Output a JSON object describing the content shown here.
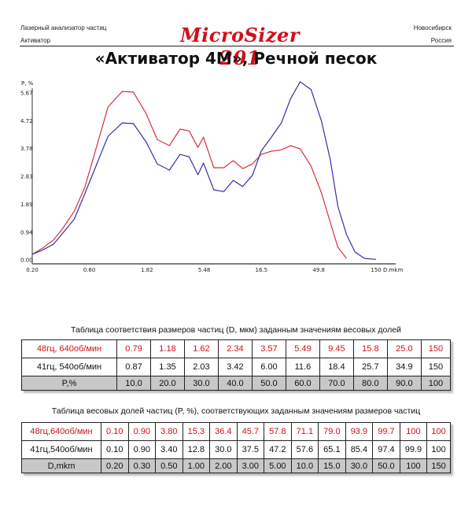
{
  "header": {
    "left_line1": "Лазерный анализатор частиц",
    "left_line2": "Активатор",
    "logo": "MicroSizer 201",
    "right_line1": "Новосибирск",
    "right_line2": "Россия"
  },
  "title": "«Активатор 4M», Речной песок",
  "colors": {
    "series_red": "#d83040",
    "series_blue": "#3030b0",
    "logo": "#d0101a",
    "table_footer_bg": "#c8c8c8"
  },
  "chart_data": {
    "type": "line",
    "title": "",
    "xlabel": "D.mkm",
    "ylabel": "P, %",
    "x_scale": "log",
    "x_ticks": [
      "0.20",
      "0.60",
      "1.82",
      "5.48",
      "16.5",
      "49.8",
      "150"
    ],
    "y_ticks": [
      "0.00",
      "0.94",
      "1.89",
      "2.83",
      "3.78",
      "4.72",
      "5.67"
    ],
    "ylim": [
      0,
      5.67
    ],
    "xlim": [
      0.2,
      150
    ],
    "grid": false,
    "series": [
      {
        "name": "48гц, 640об/мин",
        "color": "#d83040",
        "x": [
          0.2,
          0.24,
          0.3,
          0.36,
          0.45,
          0.55,
          0.86,
          1.13,
          1.4,
          1.79,
          2.22,
          2.81,
          3.44,
          4.1,
          4.86,
          5.4,
          6.6,
          8.0,
          9.6,
          11.5,
          13.9,
          16.4,
          20.0,
          24.2,
          29.0,
          34.8,
          43.0,
          52.5,
          62.0,
          72.0,
          85.0
        ],
        "values": [
          0.19,
          0.38,
          0.67,
          1.07,
          1.66,
          2.46,
          5.19,
          5.72,
          5.7,
          4.97,
          4.09,
          3.88,
          4.44,
          4.38,
          3.82,
          4.17,
          3.13,
          3.13,
          3.37,
          3.1,
          3.26,
          3.58,
          3.69,
          3.74,
          3.88,
          3.77,
          3.18,
          2.27,
          1.28,
          0.43,
          0.05
        ]
      },
      {
        "name": "41гц, 540об/мин",
        "color": "#3030b0",
        "x": [
          0.2,
          0.24,
          0.3,
          0.36,
          0.45,
          0.55,
          0.86,
          1.13,
          1.4,
          1.79,
          2.22,
          2.81,
          3.44,
          4.1,
          4.86,
          5.4,
          6.6,
          8.0,
          9.6,
          11.5,
          13.9,
          16.4,
          20.0,
          24.2,
          29.0,
          34.8,
          43.0,
          52.5,
          62.0,
          72.0,
          85.0,
          100,
          120,
          150
        ],
        "values": [
          0.19,
          0.32,
          0.53,
          0.91,
          1.39,
          2.25,
          4.2,
          4.65,
          4.63,
          4.01,
          3.26,
          3.05,
          3.58,
          3.5,
          2.89,
          3.29,
          2.38,
          2.32,
          2.7,
          2.49,
          2.88,
          3.69,
          4.17,
          4.65,
          5.48,
          6.05,
          5.78,
          4.71,
          3.42,
          1.82,
          0.86,
          0.27,
          0.05,
          0.02
        ]
      }
    ]
  },
  "table1": {
    "caption": "Таблица соответствия размеров частиц (D, мкм) заданным значениям весовых долей",
    "rows": [
      {
        "label": "48гц, 640об/мин",
        "values": [
          "0.79",
          "1.18",
          "1.62",
          "2.34",
          "3.57",
          "5.49",
          "9.45",
          "15.8",
          "25.0",
          "150"
        ]
      },
      {
        "label": "41гц, 540об/мин",
        "values": [
          "0.87",
          "1.35",
          "2.03",
          "3.42",
          "6.00",
          "11.6",
          "18.4",
          "25.7",
          "34.9",
          "150"
        ]
      }
    ],
    "footer": {
      "label": "P,%",
      "values": [
        "10.0",
        "20.0",
        "30.0",
        "40.0",
        "50.0",
        "60.0",
        "70.0",
        "80.0",
        "90.0",
        "100"
      ]
    }
  },
  "table2": {
    "caption": "Таблица весовых долей частиц (P, %), соответствующих заданным значениям размеров частиц",
    "rows": [
      {
        "label": "48гц,640об/мин",
        "values": [
          "0.10",
          "0.90",
          "3.80",
          "15.3",
          "36.4",
          "45.7",
          "57.8",
          "71.1",
          "79.0",
          "93.9",
          "99.7",
          "100",
          "100"
        ]
      },
      {
        "label": "41гц,540об/мин",
        "values": [
          "0.10",
          "0.90",
          "3.40",
          "12.8",
          "30.0",
          "37.5",
          "47.2",
          "57.6",
          "65.1",
          "85.4",
          "97.4",
          "99.9",
          "100"
        ]
      }
    ],
    "footer": {
      "label": "D,mkm",
      "values": [
        "0.20",
        "0.30",
        "0.50",
        "1.00",
        "2.00",
        "3.00",
        "5.00",
        "10.0",
        "15.0",
        "30.0",
        "50.0",
        "100",
        "150"
      ]
    }
  }
}
